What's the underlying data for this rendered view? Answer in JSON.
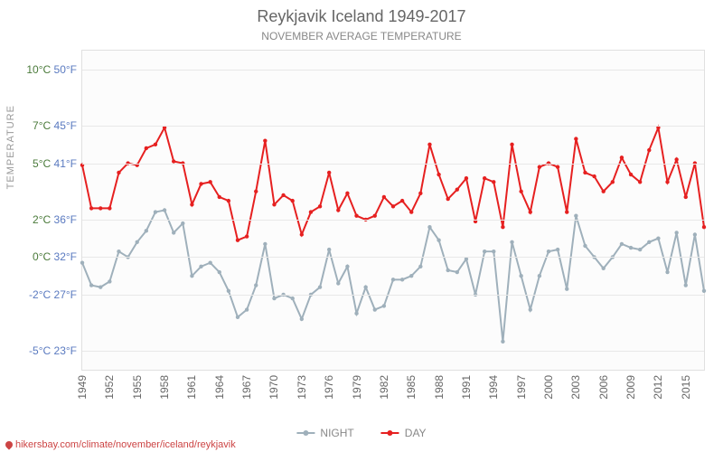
{
  "title": "Reykjavik Iceland 1949-2017",
  "subtitle": "November average temperature",
  "y_axis_label": "TEMPERATURE",
  "footer_url": "hikersbay.com/climate/november/iceland/reykjavik",
  "legend": [
    {
      "label": "NIGHT",
      "color": "#9fb0bb"
    },
    {
      "label": "DAY",
      "color": "#e62020"
    }
  ],
  "colors": {
    "day_line": "#e62020",
    "night_line": "#9fb0bb",
    "day_marker": "#e62020",
    "night_marker": "#9fb0bb",
    "grid": "#e8e8e8",
    "plot_bg": "#fcfcfc",
    "tick_c": "#4a7a3a",
    "tick_f": "#5a7ac0"
  },
  "y_range_c": {
    "min": -6,
    "max": 11
  },
  "y_ticks": [
    {
      "c": "10°C",
      "f": "50°F",
      "val": 10
    },
    {
      "c": "7°C",
      "f": "45°F",
      "val": 7
    },
    {
      "c": "5°C",
      "f": "41°F",
      "val": 5
    },
    {
      "c": "2°C",
      "f": "36°F",
      "val": 2
    },
    {
      "c": "0°C",
      "f": "32°F",
      "val": 0,
      "neg": false
    },
    {
      "c": "-2°C",
      "f": "27°F",
      "val": -2,
      "neg": true
    },
    {
      "c": "-5°C",
      "f": "23°F",
      "val": -5,
      "neg": true
    }
  ],
  "x_ticks": [
    1949,
    1952,
    1955,
    1958,
    1961,
    1964,
    1967,
    1970,
    1973,
    1976,
    1979,
    1982,
    1985,
    1988,
    1991,
    1994,
    1997,
    2000,
    2003,
    2006,
    2009,
    2012,
    2015
  ],
  "years": [
    1949,
    1950,
    1951,
    1952,
    1953,
    1954,
    1955,
    1956,
    1957,
    1958,
    1959,
    1960,
    1961,
    1962,
    1963,
    1964,
    1965,
    1966,
    1967,
    1968,
    1969,
    1970,
    1971,
    1972,
    1973,
    1974,
    1975,
    1976,
    1977,
    1978,
    1979,
    1980,
    1981,
    1982,
    1983,
    1984,
    1985,
    1986,
    1987,
    1988,
    1989,
    1990,
    1991,
    1992,
    1993,
    1994,
    1995,
    1996,
    1997,
    1998,
    1999,
    2000,
    2001,
    2002,
    2003,
    2004,
    2005,
    2006,
    2007,
    2008,
    2009,
    2010,
    2011,
    2012,
    2013,
    2014,
    2015,
    2016,
    2017
  ],
  "day": [
    4.9,
    2.6,
    2.6,
    2.6,
    4.5,
    5.0,
    4.9,
    5.8,
    6.0,
    6.9,
    5.1,
    5.0,
    2.8,
    3.9,
    4.0,
    3.2,
    3.0,
    0.9,
    1.1,
    3.5,
    6.2,
    2.8,
    3.3,
    3.0,
    1.2,
    2.4,
    2.7,
    4.5,
    2.5,
    3.4,
    2.2,
    2.0,
    2.2,
    3.2,
    2.7,
    3.0,
    2.4,
    3.4,
    6.0,
    4.4,
    3.1,
    3.6,
    4.2,
    1.9,
    4.2,
    4.0,
    1.6,
    6.0,
    3.5,
    2.4,
    4.8,
    5.0,
    4.8,
    2.4,
    6.3,
    4.5,
    4.3,
    3.5,
    4.0,
    5.3,
    4.4,
    4.0,
    5.7,
    6.9,
    4.0,
    5.2,
    3.2,
    5.0,
    1.6
  ],
  "night": [
    -0.3,
    -1.5,
    -1.6,
    -1.3,
    0.3,
    0.0,
    0.8,
    1.4,
    2.4,
    2.5,
    1.3,
    1.8,
    -1.0,
    -0.5,
    -0.3,
    -0.8,
    -1.8,
    -3.2,
    -2.8,
    -1.5,
    0.7,
    -2.2,
    -2.0,
    -2.2,
    -3.3,
    -2.0,
    -1.6,
    0.4,
    -1.4,
    -0.5,
    -3.0,
    -1.6,
    -2.8,
    -2.6,
    -1.2,
    -1.2,
    -1.0,
    -0.5,
    1.6,
    0.9,
    -0.7,
    -0.8,
    -0.1,
    -2.0,
    0.3,
    0.3,
    -4.5,
    0.8,
    -1.0,
    -2.8,
    -1.0,
    0.3,
    0.4,
    -1.7,
    2.2,
    0.6,
    0.0,
    -0.6,
    0.0,
    0.7,
    0.5,
    0.4,
    0.8,
    1.0,
    -0.8,
    1.3,
    -1.5,
    1.2,
    -1.8
  ],
  "style": {
    "line_width": 2,
    "marker_radius": 2.2,
    "title_fontsize": 18,
    "subtitle_fontsize": 12,
    "tick_fontsize": 12
  }
}
